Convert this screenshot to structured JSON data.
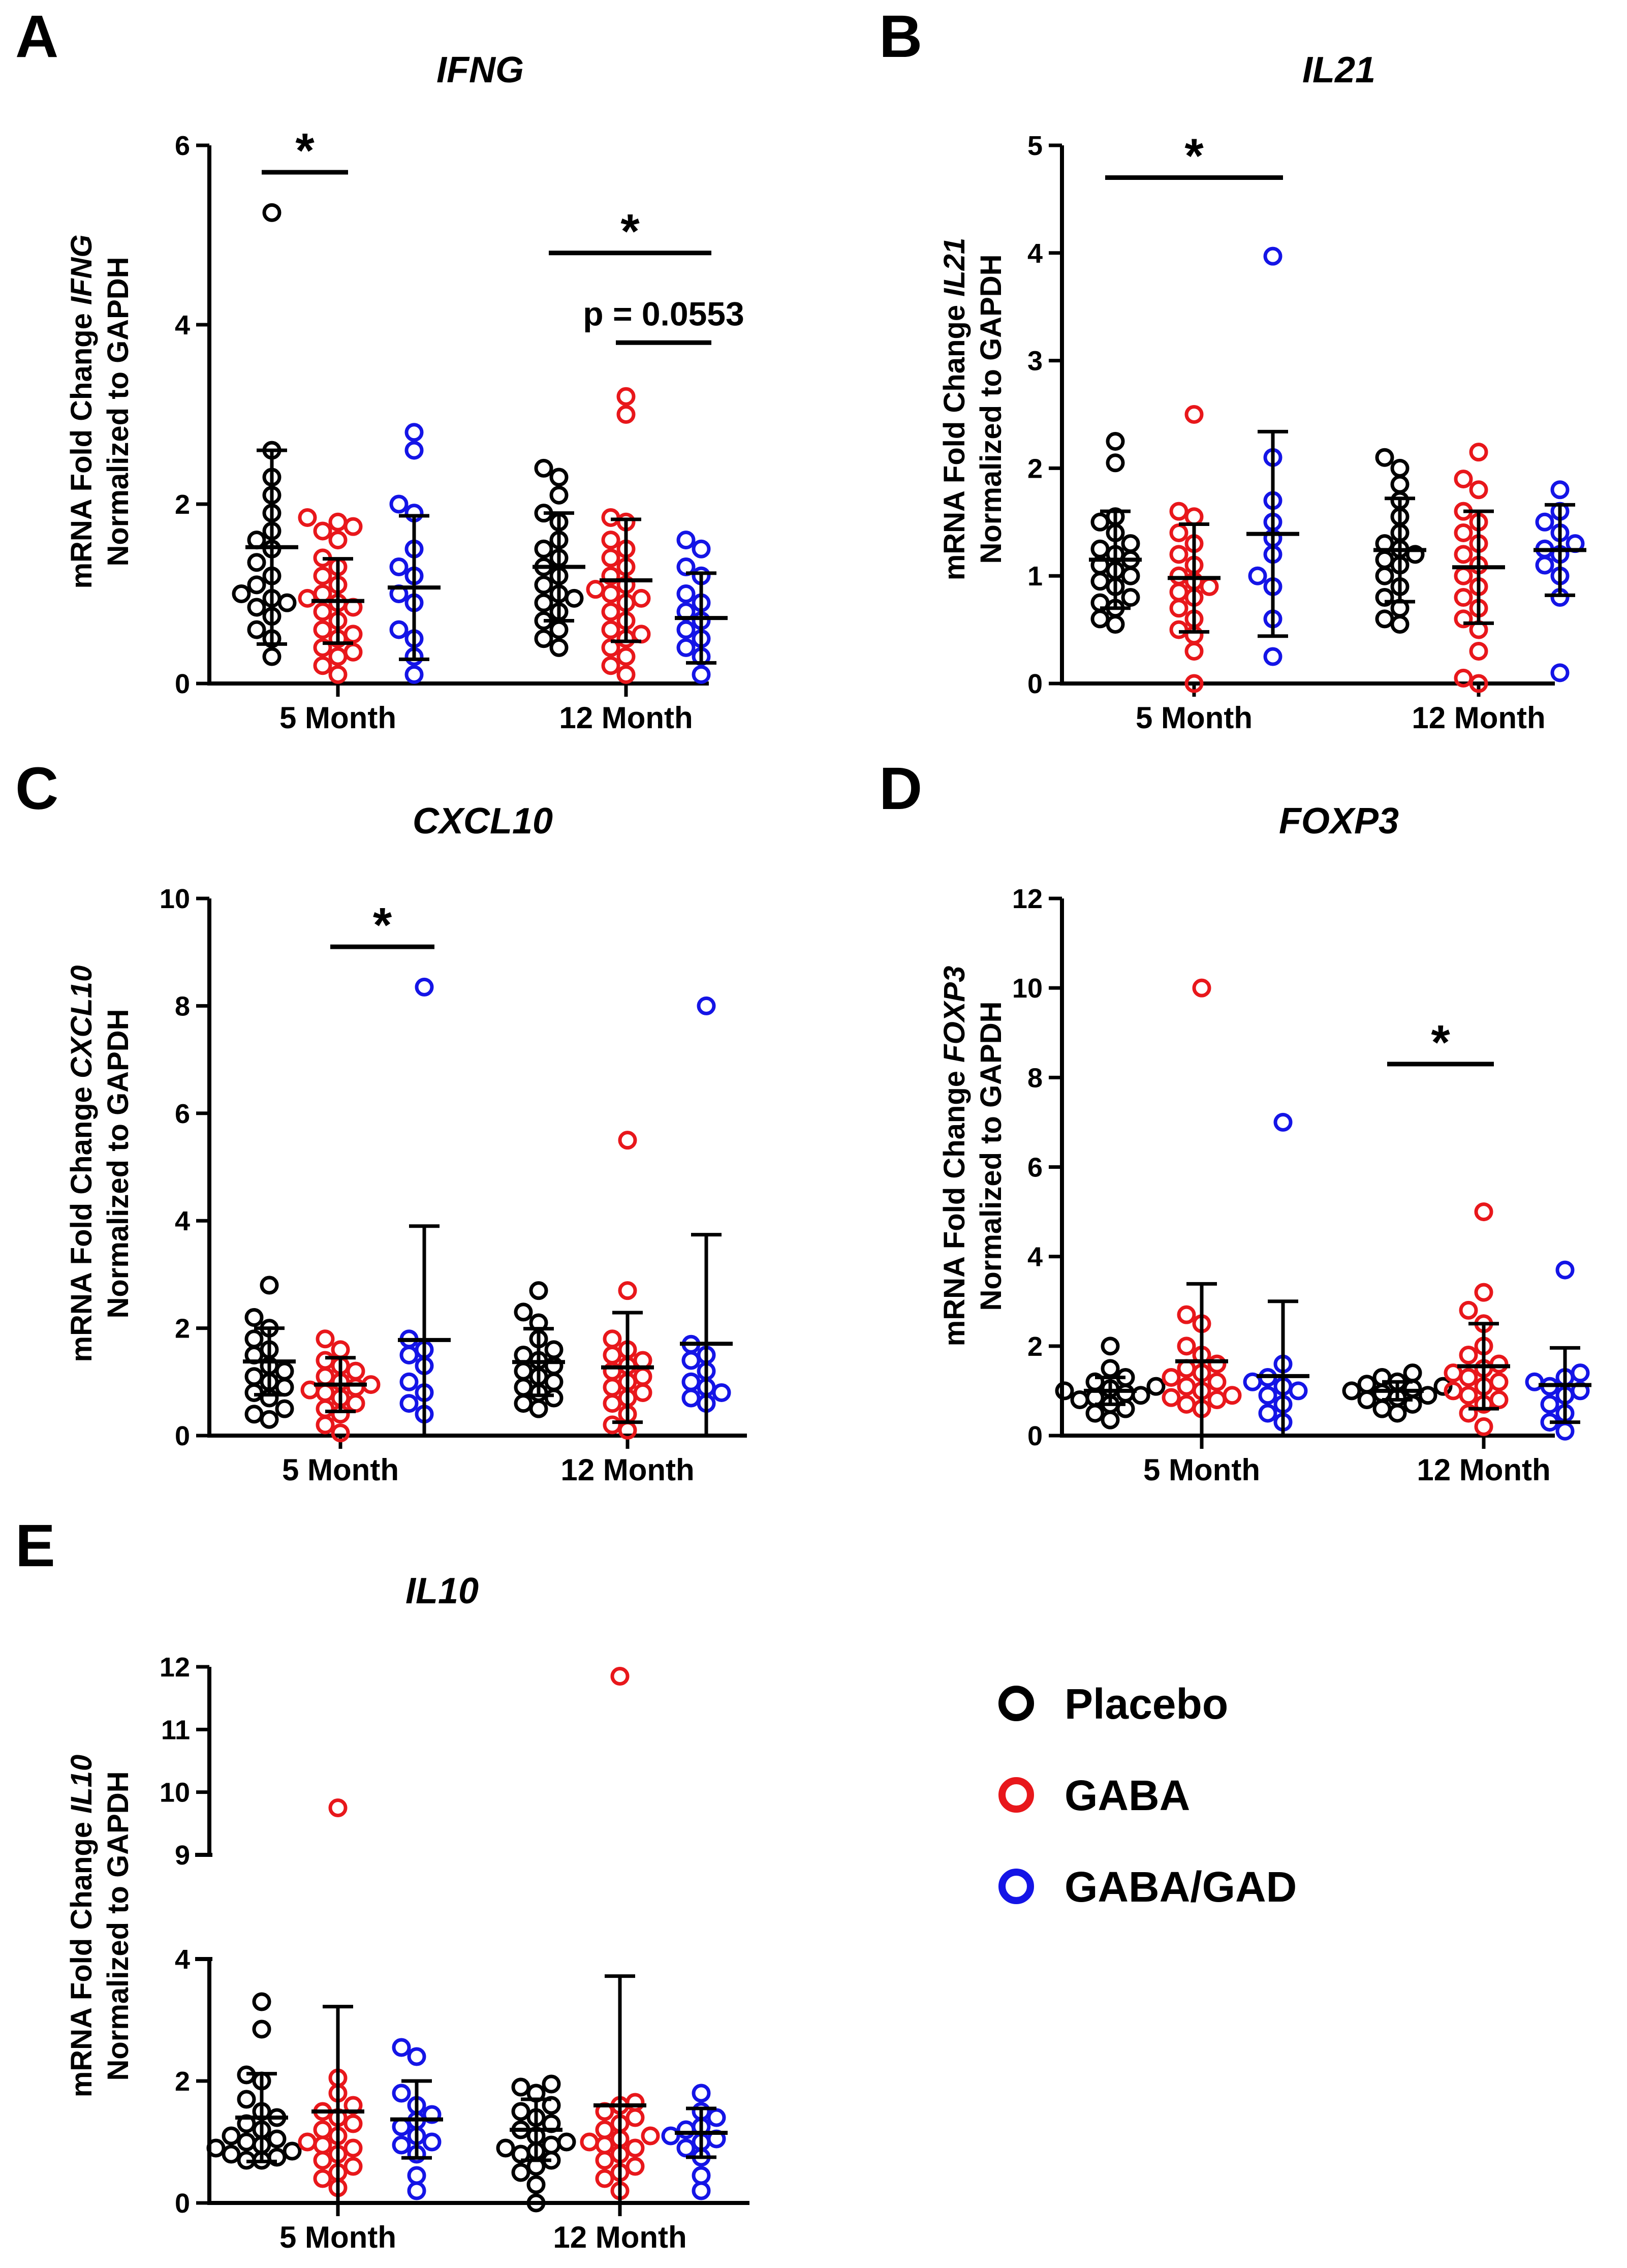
{
  "colors": {
    "Placebo": "#000000",
    "GABA": "#e8171b",
    "GABA/GAD": "#1414e6"
  },
  "legend": [
    {
      "label": "Placebo",
      "color": "#000000"
    },
    {
      "label": "GABA",
      "color": "#e8171b"
    },
    {
      "label": "GABA/GAD",
      "color": "#1414e6"
    }
  ],
  "chart_data": [
    {
      "id": "A",
      "type": "scatter",
      "title": "IFNG",
      "gene": "IFNG",
      "ylabel_prefix": "mRNA Fold Change ",
      "ylabel_line2": "Normalized to GAPDH",
      "ylim": [
        0,
        6
      ],
      "yticks": [
        0,
        2,
        4,
        6
      ],
      "categories": [
        "5 Month",
        "12 Month"
      ],
      "series": [
        {
          "name": "Placebo",
          "values": [
            [
              5.25,
              2.6,
              2.3,
              2.1,
              1.9,
              1.7,
              1.6,
              1.5,
              1.35,
              1.2,
              1.1,
              1.0,
              0.95,
              0.9,
              0.85,
              0.75,
              0.6,
              0.5,
              0.3
            ],
            [
              2.4,
              2.3,
              2.1,
              1.9,
              1.8,
              1.6,
              1.5,
              1.4,
              1.3,
              1.2,
              1.1,
              1.0,
              0.95,
              0.9,
              0.8,
              0.7,
              0.6,
              0.5,
              0.4
            ]
          ],
          "mean": [
            1.52,
            1.3
          ],
          "sd": [
            1.08,
            0.6
          ]
        },
        {
          "name": "GABA",
          "values": [
            [
              1.85,
              1.8,
              1.75,
              1.7,
              1.6,
              1.4,
              1.3,
              1.2,
              1.1,
              1.0,
              0.95,
              0.9,
              0.85,
              0.8,
              0.7,
              0.6,
              0.55,
              0.5,
              0.4,
              0.35,
              0.3,
              0.2,
              0.1
            ],
            [
              3.2,
              3.0,
              1.85,
              1.8,
              1.6,
              1.5,
              1.4,
              1.3,
              1.2,
              1.1,
              1.05,
              1.0,
              0.95,
              0.9,
              0.8,
              0.7,
              0.6,
              0.55,
              0.5,
              0.4,
              0.3,
              0.2,
              0.1
            ]
          ],
          "mean": [
            0.92,
            1.15
          ],
          "sd": [
            0.47,
            0.68
          ]
        },
        {
          "name": "GABA/GAD",
          "values": [
            [
              2.8,
              2.6,
              2.0,
              1.9,
              1.5,
              1.3,
              1.2,
              1.0,
              0.9,
              0.6,
              0.5,
              0.3,
              0.1
            ],
            [
              1.6,
              1.5,
              1.3,
              1.2,
              1.0,
              0.9,
              0.8,
              0.7,
              0.6,
              0.5,
              0.4,
              0.3,
              0.1
            ]
          ],
          "mean": [
            1.07,
            0.73
          ],
          "sd": [
            0.8,
            0.5
          ]
        }
      ],
      "annotations": [
        {
          "cat": 0,
          "from": 0,
          "to": 1,
          "y": 5.7,
          "label": "*"
        },
        {
          "cat": 1,
          "from": 0,
          "to": 2,
          "y": 4.8,
          "label": "*"
        },
        {
          "cat": 1,
          "from": 1,
          "to": 2,
          "y": 3.8,
          "label": "p = 0.0553"
        }
      ]
    },
    {
      "id": "B",
      "type": "scatter",
      "title": "IL21",
      "gene": "IL21",
      "ylabel_prefix": "mRNA Fold Change ",
      "ylabel_line2": "Normalized to GAPDH",
      "ylim": [
        0,
        5
      ],
      "yticks": [
        0,
        1,
        2,
        3,
        4,
        5
      ],
      "categories": [
        "5 Month",
        "12 Month"
      ],
      "series": [
        {
          "name": "Placebo",
          "values": [
            [
              2.25,
              2.05,
              1.55,
              1.5,
              1.4,
              1.3,
              1.25,
              1.2,
              1.15,
              1.1,
              1.05,
              1.0,
              0.95,
              0.9,
              0.8,
              0.75,
              0.7,
              0.6,
              0.55
            ],
            [
              2.1,
              2.0,
              1.85,
              1.7,
              1.55,
              1.4,
              1.3,
              1.25,
              1.2,
              1.15,
              1.1,
              1.0,
              0.9,
              0.8,
              0.7,
              0.6,
              0.55
            ]
          ],
          "mean": [
            1.15,
            1.24
          ],
          "sd": [
            0.45,
            0.48
          ]
        },
        {
          "name": "GABA",
          "values": [
            [
              2.5,
              1.6,
              1.55,
              1.4,
              1.3,
              1.2,
              1.1,
              1.0,
              0.95,
              0.9,
              0.85,
              0.8,
              0.7,
              0.6,
              0.5,
              0.45,
              0.3,
              0.0
            ],
            [
              2.15,
              1.9,
              1.8,
              1.6,
              1.5,
              1.4,
              1.3,
              1.2,
              1.1,
              1.0,
              0.9,
              0.8,
              0.7,
              0.6,
              0.5,
              0.3,
              0.05,
              0.0
            ]
          ],
          "mean": [
            0.98,
            1.08
          ],
          "sd": [
            0.5,
            0.52
          ]
        },
        {
          "name": "GABA/GAD",
          "values": [
            [
              3.97,
              2.1,
              1.7,
              1.5,
              1.35,
              1.2,
              1.0,
              0.9,
              0.6,
              0.25
            ],
            [
              1.8,
              1.6,
              1.5,
              1.4,
              1.3,
              1.25,
              1.2,
              1.1,
              1.0,
              0.8,
              0.1
            ]
          ],
          "mean": [
            1.39,
            1.24
          ],
          "sd": [
            0.95,
            0.42
          ]
        }
      ],
      "annotations": [
        {
          "cat": 0,
          "from": 0,
          "to": 2,
          "y": 4.7,
          "label": "*"
        }
      ]
    },
    {
      "id": "C",
      "type": "scatter",
      "title": "CXCL10",
      "gene": "CXCL10",
      "ylabel_prefix": "mRNA Fold Change ",
      "ylabel_line2": "Normalized to GAPDH",
      "ylim": [
        0,
        10
      ],
      "yticks": [
        0,
        2,
        4,
        6,
        8,
        10
      ],
      "categories": [
        "5 Month",
        "12 Month"
      ],
      "series": [
        {
          "name": "Placebo",
          "values": [
            [
              2.8,
              2.2,
              2.0,
              1.8,
              1.6,
              1.5,
              1.3,
              1.2,
              1.1,
              1.0,
              0.9,
              0.8,
              0.7,
              0.5,
              0.4,
              0.3
            ],
            [
              2.7,
              2.3,
              2.1,
              1.8,
              1.6,
              1.5,
              1.4,
              1.3,
              1.2,
              1.1,
              1.0,
              0.9,
              0.8,
              0.7,
              0.6,
              0.5
            ]
          ],
          "mean": [
            1.38,
            1.37
          ],
          "sd": [
            0.62,
            0.62
          ]
        },
        {
          "name": "GABA",
          "values": [
            [
              1.8,
              1.6,
              1.4,
              1.3,
              1.2,
              1.1,
              1.0,
              0.95,
              0.9,
              0.85,
              0.8,
              0.7,
              0.6,
              0.5,
              0.4,
              0.2,
              0.05
            ],
            [
              5.5,
              2.7,
              1.8,
              1.6,
              1.5,
              1.4,
              1.3,
              1.2,
              1.1,
              1.0,
              0.9,
              0.8,
              0.7,
              0.6,
              0.4,
              0.2,
              0.1
            ]
          ],
          "mean": [
            0.95,
            1.27
          ],
          "sd": [
            0.5,
            1.02
          ]
        },
        {
          "name": "GABA/GAD",
          "values": [
            [
              8.35,
              1.8,
              1.6,
              1.5,
              1.3,
              1.0,
              0.8,
              0.6,
              0.4
            ],
            [
              8.0,
              1.7,
              1.5,
              1.4,
              1.2,
              1.0,
              0.9,
              0.8,
              0.7,
              0.6
            ]
          ],
          "mean": [
            1.78,
            1.71
          ],
          "sd": [
            2.12,
            2.03
          ]
        }
      ],
      "annotations": [
        {
          "cat": 0,
          "from": 1,
          "to": 2,
          "y": 9.1,
          "label": "*"
        }
      ]
    },
    {
      "id": "D",
      "type": "scatter",
      "title": "FOXP3",
      "gene": "FOXP3",
      "ylabel_prefix": "mRNA Fold Change ",
      "ylabel_line2": "Normalized to GAPDH",
      "ylim": [
        0,
        12
      ],
      "yticks": [
        0,
        2,
        4,
        6,
        8,
        10,
        12
      ],
      "categories": [
        "5 Month",
        "12 Month"
      ],
      "series": [
        {
          "name": "Placebo",
          "values": [
            [
              2.0,
              1.5,
              1.3,
              1.2,
              1.1,
              1.05,
              1.0,
              0.95,
              0.9,
              0.85,
              0.8,
              0.7,
              0.6,
              0.5,
              0.35
            ],
            [
              1.4,
              1.3,
              1.2,
              1.15,
              1.1,
              1.05,
              1.0,
              0.95,
              0.9,
              0.85,
              0.8,
              0.7,
              0.6,
              0.5
            ]
          ],
          "mean": [
            1.0,
            1.0
          ],
          "sd": [
            0.3,
            0.2
          ]
        },
        {
          "name": "GABA",
          "values": [
            [
              10.0,
              2.7,
              2.5,
              2.0,
              1.8,
              1.6,
              1.5,
              1.4,
              1.3,
              1.2,
              1.1,
              1.0,
              0.9,
              0.85,
              0.8,
              0.7,
              0.6
            ],
            [
              5.0,
              3.2,
              2.8,
              2.5,
              2.0,
              1.8,
              1.6,
              1.5,
              1.4,
              1.3,
              1.2,
              1.1,
              1.0,
              0.9,
              0.8,
              0.7,
              0.5,
              0.2
            ]
          ],
          "mean": [
            1.66,
            1.55
          ],
          "sd": [
            1.73,
            0.95
          ]
        },
        {
          "name": "GABA/GAD",
          "values": [
            [
              7.0,
              1.6,
              1.3,
              1.2,
              1.1,
              1.0,
              0.9,
              0.7,
              0.5,
              0.3
            ],
            [
              3.7,
              1.4,
              1.3,
              1.2,
              1.1,
              1.0,
              0.9,
              0.7,
              0.5,
              0.3,
              0.1
            ]
          ],
          "mean": [
            1.33,
            1.13
          ],
          "sd": [
            1.67,
            0.83
          ]
        }
      ],
      "annotations": [
        {
          "cat": 1,
          "from": 0,
          "to": 1,
          "y": 8.3,
          "label": "*"
        }
      ]
    },
    {
      "id": "E",
      "type": "scatter",
      "title": "IL10",
      "gene": "IL10",
      "ylabel_prefix": "mRNA Fold Change ",
      "ylabel_line2": "Normalized to GAPDH",
      "ylim": [
        0,
        12
      ],
      "yticks": [
        0,
        2,
        4,
        9,
        10,
        11,
        12
      ],
      "axis_break": {
        "lower": [
          0,
          4
        ],
        "upper": [
          9,
          12
        ]
      },
      "categories": [
        "5 Month",
        "12 Month"
      ],
      "series": [
        {
          "name": "Placebo",
          "values": [
            [
              3.3,
              2.85,
              2.1,
              2.0,
              1.7,
              1.5,
              1.4,
              1.3,
              1.2,
              1.1,
              1.05,
              1.0,
              0.95,
              0.9,
              0.85,
              0.8,
              0.75,
              0.7,
              0.7
            ],
            [
              1.95,
              1.9,
              1.8,
              1.6,
              1.5,
              1.4,
              1.3,
              1.2,
              1.1,
              1.0,
              0.95,
              0.9,
              0.85,
              0.8,
              0.7,
              0.6,
              0.5,
              0.3,
              0.0
            ]
          ],
          "mean": [
            1.4,
            1.2
          ],
          "sd": [
            0.72,
            0.5
          ]
        },
        {
          "name": "GABA",
          "values": [
            [
              9.75,
              2.05,
              1.8,
              1.6,
              1.5,
              1.4,
              1.3,
              1.2,
              1.1,
              1.0,
              0.95,
              0.9,
              0.8,
              0.7,
              0.6,
              0.5,
              0.4,
              0.25
            ],
            [
              11.85,
              1.65,
              1.6,
              1.5,
              1.4,
              1.3,
              1.2,
              1.1,
              1.05,
              1.0,
              0.95,
              0.9,
              0.8,
              0.7,
              0.6,
              0.5,
              0.4,
              0.2
            ]
          ],
          "mean": [
            1.5,
            1.6
          ],
          "sd": [
            1.72,
            2.12
          ]
        },
        {
          "name": "GABA/GAD",
          "values": [
            [
              2.55,
              2.4,
              1.8,
              1.6,
              1.45,
              1.35,
              1.25,
              1.1,
              1.0,
              0.95,
              0.8,
              0.45,
              0.2
            ],
            [
              1.8,
              1.5,
              1.4,
              1.25,
              1.2,
              1.1,
              1.05,
              1.0,
              0.9,
              0.75,
              0.45,
              0.2
            ]
          ],
          "mean": [
            1.37,
            1.15
          ],
          "sd": [
            0.63,
            0.4
          ]
        }
      ],
      "annotations": []
    }
  ]
}
